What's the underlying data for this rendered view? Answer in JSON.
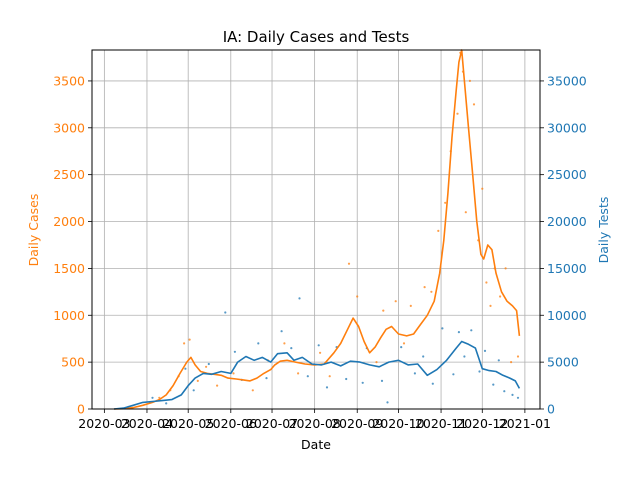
{
  "chart_data": {
    "type": "line",
    "title": "IA: Daily Cases and Tests",
    "xlabel": "Date",
    "ylabel_left": "Daily Cases",
    "ylabel_right": "Daily Tests",
    "grid": true,
    "colors": {
      "cases": "#ff7f0e",
      "tests": "#1f77b4"
    },
    "x_ticks": [
      "2020-03",
      "2020-04",
      "2020-05",
      "2020-06",
      "2020-07",
      "2020-08",
      "2020-09",
      "2020-10",
      "2020-11",
      "2020-12",
      "2021-01"
    ],
    "xlim": [
      "2020-02-21",
      "2021-01-12"
    ],
    "y_left_ticks": [
      "0",
      "500",
      "1000",
      "1500",
      "2000",
      "2500",
      "3000",
      "3500"
    ],
    "ylim_left": [
      0,
      3830
    ],
    "y_right_ticks": [
      "0",
      "5000",
      "10000",
      "15000",
      "20000",
      "25000",
      "30000",
      "35000"
    ],
    "ylim_right": [
      0,
      38300
    ],
    "series": [
      {
        "key": "cases",
        "style": "line",
        "axis": "left",
        "points": [
          [
            "2020-03-08",
            0
          ],
          [
            "2020-03-15",
            3
          ],
          [
            "2020-03-22",
            15
          ],
          [
            "2020-03-29",
            40
          ],
          [
            "2020-04-05",
            70
          ],
          [
            "2020-04-10",
            100
          ],
          [
            "2020-04-15",
            150
          ],
          [
            "2020-04-20",
            250
          ],
          [
            "2020-04-25",
            380
          ],
          [
            "2020-04-30",
            500
          ],
          [
            "2020-05-03",
            550
          ],
          [
            "2020-05-06",
            470
          ],
          [
            "2020-05-10",
            400
          ],
          [
            "2020-05-15",
            380
          ],
          [
            "2020-05-20",
            370
          ],
          [
            "2020-05-25",
            360
          ],
          [
            "2020-05-30",
            330
          ],
          [
            "2020-06-05",
            320
          ],
          [
            "2020-06-10",
            310
          ],
          [
            "2020-06-15",
            300
          ],
          [
            "2020-06-20",
            330
          ],
          [
            "2020-06-25",
            380
          ],
          [
            "2020-06-30",
            420
          ],
          [
            "2020-07-03",
            470
          ],
          [
            "2020-07-07",
            510
          ],
          [
            "2020-07-12",
            520
          ],
          [
            "2020-07-18",
            500
          ],
          [
            "2020-07-25",
            480
          ],
          [
            "2020-08-01",
            470
          ],
          [
            "2020-08-08",
            480
          ],
          [
            "2020-08-15",
            600
          ],
          [
            "2020-08-20",
            700
          ],
          [
            "2020-08-25",
            850
          ],
          [
            "2020-08-29",
            970
          ],
          [
            "2020-09-02",
            880
          ],
          [
            "2020-09-06",
            720
          ],
          [
            "2020-09-10",
            600
          ],
          [
            "2020-09-14",
            660
          ],
          [
            "2020-09-18",
            760
          ],
          [
            "2020-09-22",
            850
          ],
          [
            "2020-09-26",
            880
          ],
          [
            "2020-10-01",
            800
          ],
          [
            "2020-10-07",
            780
          ],
          [
            "2020-10-12",
            800
          ],
          [
            "2020-10-17",
            900
          ],
          [
            "2020-10-22",
            1000
          ],
          [
            "2020-10-27",
            1150
          ],
          [
            "2020-10-31",
            1450
          ],
          [
            "2020-11-03",
            1800
          ],
          [
            "2020-11-06",
            2300
          ],
          [
            "2020-11-09",
            2900
          ],
          [
            "2020-11-12",
            3400
          ],
          [
            "2020-11-14",
            3700
          ],
          [
            "2020-11-16",
            3830
          ],
          [
            "2020-11-18",
            3500
          ],
          [
            "2020-11-21",
            3000
          ],
          [
            "2020-11-24",
            2500
          ],
          [
            "2020-11-27",
            2000
          ],
          [
            "2020-11-30",
            1650
          ],
          [
            "2020-12-02",
            1600
          ],
          [
            "2020-12-05",
            1750
          ],
          [
            "2020-12-08",
            1700
          ],
          [
            "2020-12-11",
            1450
          ],
          [
            "2020-12-15",
            1250
          ],
          [
            "2020-12-19",
            1150
          ],
          [
            "2020-12-23",
            1100
          ],
          [
            "2020-12-26",
            1050
          ],
          [
            "2020-12-28",
            780
          ]
        ]
      },
      {
        "key": "tests",
        "style": "line",
        "axis": "right",
        "points": [
          [
            "2020-03-08",
            0
          ],
          [
            "2020-03-15",
            100
          ],
          [
            "2020-03-22",
            400
          ],
          [
            "2020-03-29",
            700
          ],
          [
            "2020-04-05",
            800
          ],
          [
            "2020-04-12",
            900
          ],
          [
            "2020-04-19",
            1000
          ],
          [
            "2020-04-26",
            1500
          ],
          [
            "2020-05-01",
            2500
          ],
          [
            "2020-05-06",
            3300
          ],
          [
            "2020-05-12",
            3800
          ],
          [
            "2020-05-18",
            3700
          ],
          [
            "2020-05-25",
            4000
          ],
          [
            "2020-06-01",
            3800
          ],
          [
            "2020-06-06",
            5000
          ],
          [
            "2020-06-12",
            5600
          ],
          [
            "2020-06-18",
            5200
          ],
          [
            "2020-06-24",
            5500
          ],
          [
            "2020-06-30",
            5000
          ],
          [
            "2020-07-05",
            5900
          ],
          [
            "2020-07-12",
            6000
          ],
          [
            "2020-07-17",
            5200
          ],
          [
            "2020-07-23",
            5500
          ],
          [
            "2020-07-30",
            4800
          ],
          [
            "2020-08-06",
            4700
          ],
          [
            "2020-08-13",
            5000
          ],
          [
            "2020-08-20",
            4600
          ],
          [
            "2020-08-27",
            5100
          ],
          [
            "2020-09-03",
            5000
          ],
          [
            "2020-09-10",
            4700
          ],
          [
            "2020-09-17",
            4500
          ],
          [
            "2020-09-24",
            5000
          ],
          [
            "2020-10-01",
            5200
          ],
          [
            "2020-10-08",
            4700
          ],
          [
            "2020-10-15",
            4800
          ],
          [
            "2020-10-22",
            3600
          ],
          [
            "2020-10-29",
            4200
          ],
          [
            "2020-11-05",
            5200
          ],
          [
            "2020-11-12",
            6500
          ],
          [
            "2020-11-16",
            7200
          ],
          [
            "2020-11-21",
            6900
          ],
          [
            "2020-11-26",
            6500
          ],
          [
            "2020-12-01",
            4300
          ],
          [
            "2020-12-06",
            4100
          ],
          [
            "2020-12-11",
            4000
          ],
          [
            "2020-12-16",
            3600
          ],
          [
            "2020-12-21",
            3300
          ],
          [
            "2020-12-25",
            3000
          ],
          [
            "2020-12-28",
            2200
          ]
        ]
      },
      {
        "key": "cases",
        "style": "scatter",
        "axis": "left",
        "points": [
          [
            "2020-04-10",
            120
          ],
          [
            "2020-04-18",
            200
          ],
          [
            "2020-04-24",
            350
          ],
          [
            "2020-04-28",
            700
          ],
          [
            "2020-05-02",
            740
          ],
          [
            "2020-05-08",
            300
          ],
          [
            "2020-05-14",
            450
          ],
          [
            "2020-05-22",
            250
          ],
          [
            "2020-06-03",
            380
          ],
          [
            "2020-06-17",
            200
          ],
          [
            "2020-06-28",
            520
          ],
          [
            "2020-07-10",
            700
          ],
          [
            "2020-07-20",
            380
          ],
          [
            "2020-08-05",
            600
          ],
          [
            "2020-08-12",
            350
          ],
          [
            "2020-08-26",
            1550
          ],
          [
            "2020-09-01",
            1200
          ],
          [
            "2020-09-15",
            500
          ],
          [
            "2020-09-20",
            1050
          ],
          [
            "2020-09-29",
            1150
          ],
          [
            "2020-10-05",
            700
          ],
          [
            "2020-10-10",
            1100
          ],
          [
            "2020-10-20",
            1300
          ],
          [
            "2020-10-25",
            1250
          ],
          [
            "2020-10-30",
            1900
          ],
          [
            "2020-11-04",
            2200
          ],
          [
            "2020-11-08",
            2750
          ],
          [
            "2020-11-13",
            3150
          ],
          [
            "2020-11-15",
            3800
          ],
          [
            "2020-11-17",
            3600
          ],
          [
            "2020-11-19",
            2100
          ],
          [
            "2020-11-22",
            3500
          ],
          [
            "2020-11-25",
            3250
          ],
          [
            "2020-11-28",
            1800
          ],
          [
            "2020-12-01",
            2350
          ],
          [
            "2020-12-04",
            1350
          ],
          [
            "2020-12-07",
            1100
          ],
          [
            "2020-12-10",
            1500
          ],
          [
            "2020-12-14",
            1200
          ],
          [
            "2020-12-18",
            1500
          ],
          [
            "2020-12-22",
            500
          ],
          [
            "2020-12-27",
            560
          ]
        ]
      },
      {
        "key": "tests",
        "style": "scatter",
        "axis": "right",
        "points": [
          [
            "2020-04-05",
            1200
          ],
          [
            "2020-04-15",
            600
          ],
          [
            "2020-04-29",
            4300
          ],
          [
            "2020-05-05",
            2000
          ],
          [
            "2020-05-16",
            4800
          ],
          [
            "2020-05-28",
            10300
          ],
          [
            "2020-06-04",
            6100
          ],
          [
            "2020-06-09",
            3100
          ],
          [
            "2020-06-21",
            7000
          ],
          [
            "2020-06-27",
            3300
          ],
          [
            "2020-07-08",
            8300
          ],
          [
            "2020-07-15",
            6500
          ],
          [
            "2020-07-21",
            11800
          ],
          [
            "2020-07-27",
            3500
          ],
          [
            "2020-08-04",
            6800
          ],
          [
            "2020-08-10",
            2300
          ],
          [
            "2020-08-17",
            6600
          ],
          [
            "2020-08-24",
            3200
          ],
          [
            "2020-09-05",
            2800
          ],
          [
            "2020-09-08",
            6500
          ],
          [
            "2020-09-19",
            3000
          ],
          [
            "2020-09-23",
            700
          ],
          [
            "2020-10-03",
            6600
          ],
          [
            "2020-10-13",
            3800
          ],
          [
            "2020-10-19",
            5600
          ],
          [
            "2020-10-26",
            2700
          ],
          [
            "2020-11-02",
            8600
          ],
          [
            "2020-11-10",
            3700
          ],
          [
            "2020-11-14",
            8200
          ],
          [
            "2020-11-18",
            5600
          ],
          [
            "2020-11-23",
            8400
          ],
          [
            "2020-11-29",
            4000
          ],
          [
            "2020-12-03",
            6200
          ],
          [
            "2020-12-09",
            2600
          ],
          [
            "2020-12-13",
            5200
          ],
          [
            "2020-12-17",
            1900
          ],
          [
            "2020-12-23",
            1500
          ],
          [
            "2020-12-27",
            1200
          ]
        ]
      }
    ]
  }
}
